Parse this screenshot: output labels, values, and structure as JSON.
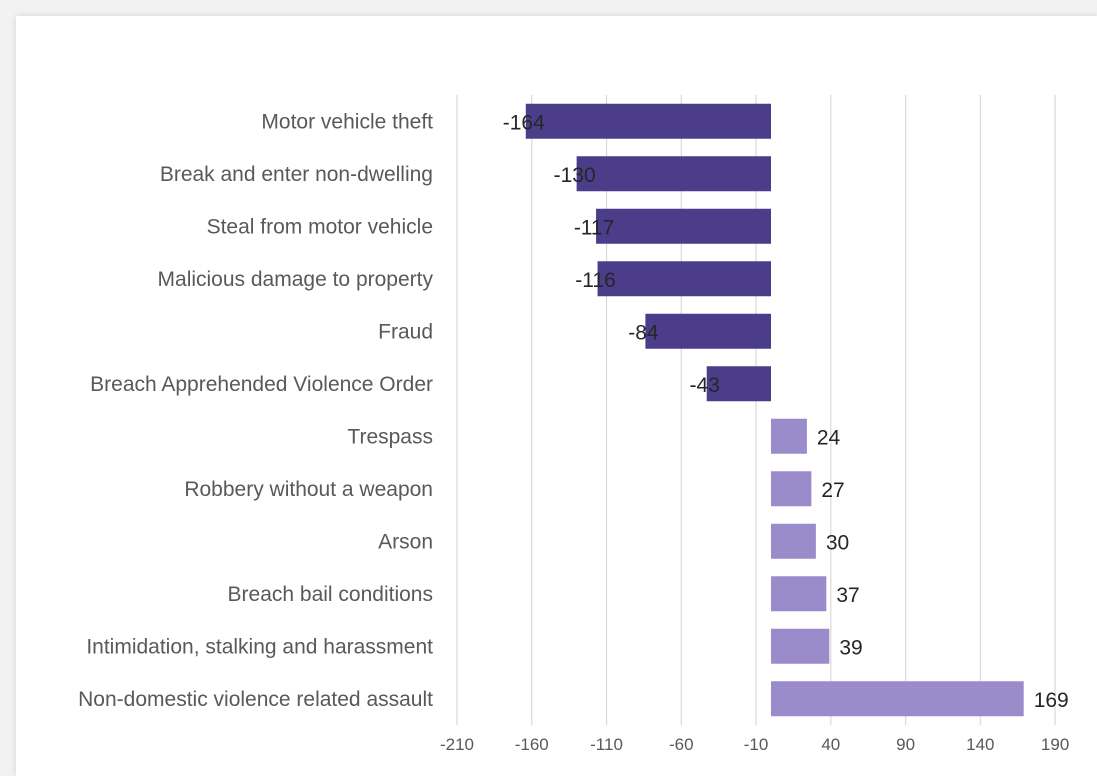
{
  "chart_data": {
    "type": "bar",
    "orientation": "horizontal",
    "categories": [
      "Motor vehicle theft",
      "Break and enter non-dwelling",
      "Steal from motor vehicle",
      "Malicious damage to property",
      "Fraud",
      "Breach Apprehended Violence Order",
      "Trespass",
      "Robbery without a weapon",
      "Arson",
      "Breach bail conditions",
      "Intimidation, stalking and harassment",
      "Non-domestic violence related assault"
    ],
    "values": [
      -164,
      -130,
      -117,
      -116,
      -84,
      -43,
      24,
      27,
      30,
      37,
      39,
      169
    ],
    "data_labels": [
      "-164",
      "-130",
      "-117",
      "-116",
      "-84",
      "-43",
      "24",
      "27",
      "30",
      "37",
      "39",
      "169"
    ],
    "xticks": [
      -210,
      -160,
      -110,
      -60,
      -10,
      40,
      90,
      140,
      190
    ],
    "xtick_labels": [
      "-210",
      "-160",
      "-110",
      "-60",
      "-10",
      "40",
      "90",
      "140",
      "190"
    ],
    "xlim": [
      -210,
      210
    ],
    "colors": {
      "negative": "#4b3d8a",
      "positive": "#9a8bcb"
    },
    "grid": "vertical",
    "legend": "none",
    "title": "",
    "xlabel": "",
    "ylabel": ""
  }
}
